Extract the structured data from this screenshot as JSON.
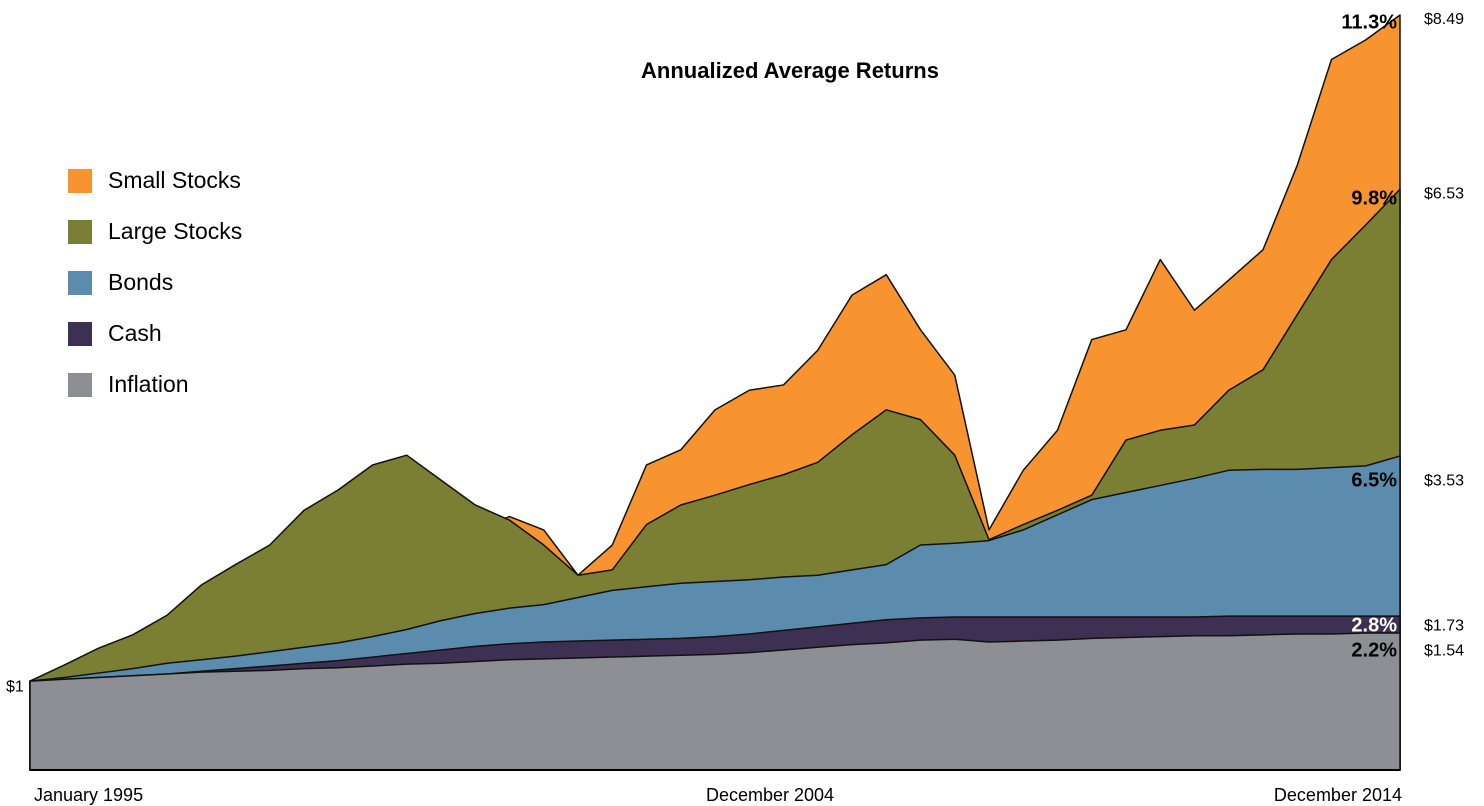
{
  "chart_data": {
    "type": "area",
    "title": "Annualized Average Returns",
    "categories": [
      "January 1995",
      null,
      null,
      null,
      null,
      null,
      null,
      null,
      null,
      null,
      null,
      null,
      null,
      null,
      null,
      null,
      null,
      null,
      null,
      null,
      "December 2004",
      null,
      null,
      null,
      null,
      null,
      null,
      null,
      null,
      null,
      null,
      null,
      null,
      null,
      null,
      null,
      null,
      null,
      null,
      null,
      "December 2014"
    ],
    "ylim": [
      0,
      8.49
    ],
    "start_value": 1,
    "start_label": "$1",
    "series": [
      {
        "name": "Small Stocks",
        "color": "#f7942f",
        "label_color": "#000000",
        "return_label": "11.3%",
        "end_value": 8.49,
        "end_label": "$8.49",
        "values": [
          1.0,
          1.12,
          1.3,
          1.45,
          1.6,
          1.8,
          2.0,
          2.1,
          2.2,
          2.3,
          2.4,
          2.5,
          2.6,
          2.7,
          2.85,
          2.7,
          2.19,
          2.53,
          3.43,
          3.6,
          4.05,
          4.27,
          4.33,
          4.72,
          5.34,
          5.57,
          4.95,
          4.44,
          2.7,
          3.37,
          3.82,
          4.84,
          4.95,
          5.74,
          5.17,
          5.51,
          5.85,
          6.8,
          7.99,
          8.21,
          8.49
        ]
      },
      {
        "name": "Large Stocks",
        "color": "#7a7f33",
        "label_color": "#000000",
        "return_label": "9.8%",
        "end_value": 6.53,
        "end_label": "$6.53",
        "values": [
          1.0,
          1.18,
          1.37,
          1.52,
          1.74,
          2.08,
          2.31,
          2.53,
          2.92,
          3.15,
          3.43,
          3.54,
          3.26,
          2.98,
          2.81,
          2.53,
          2.19,
          2.25,
          2.76,
          2.98,
          3.09,
          3.21,
          3.32,
          3.46,
          3.77,
          4.05,
          3.94,
          3.54,
          2.59,
          2.76,
          2.92,
          3.09,
          3.71,
          3.82,
          3.88,
          4.27,
          4.5,
          5.12,
          5.74,
          6.13,
          6.53
        ]
      },
      {
        "name": "Bonds",
        "color": "#5b8bad",
        "label_color": "#000000",
        "return_label": "6.5%",
        "end_value": 3.53,
        "end_label": "$3.53",
        "values": [
          1.0,
          1.04,
          1.09,
          1.14,
          1.2,
          1.24,
          1.28,
          1.33,
          1.38,
          1.43,
          1.5,
          1.58,
          1.68,
          1.76,
          1.82,
          1.86,
          1.94,
          2.02,
          2.06,
          2.1,
          2.12,
          2.14,
          2.17,
          2.19,
          2.25,
          2.31,
          2.53,
          2.55,
          2.58,
          2.7,
          2.87,
          3.04,
          3.12,
          3.2,
          3.28,
          3.37,
          3.38,
          3.38,
          3.4,
          3.42,
          3.53
        ]
      },
      {
        "name": "Cash",
        "color": "#3d3052",
        "label_color": "#ffffff",
        "return_label": "2.8%",
        "end_value": 1.73,
        "end_label": "$1.73",
        "values": [
          1.0,
          1.02,
          1.04,
          1.06,
          1.08,
          1.11,
          1.14,
          1.17,
          1.2,
          1.23,
          1.27,
          1.31,
          1.35,
          1.39,
          1.42,
          1.44,
          1.45,
          1.46,
          1.47,
          1.48,
          1.5,
          1.53,
          1.57,
          1.61,
          1.65,
          1.69,
          1.71,
          1.72,
          1.72,
          1.72,
          1.72,
          1.72,
          1.72,
          1.72,
          1.72,
          1.73,
          1.73,
          1.73,
          1.73,
          1.73,
          1.73
        ]
      },
      {
        "name": "Inflation",
        "color": "#8e8f94",
        "label_color": "#000000",
        "return_label": "2.2%",
        "end_value": 1.54,
        "end_label": "$1.54",
        "values": [
          1.0,
          1.02,
          1.04,
          1.06,
          1.08,
          1.1,
          1.11,
          1.12,
          1.14,
          1.15,
          1.17,
          1.19,
          1.2,
          1.22,
          1.24,
          1.25,
          1.26,
          1.27,
          1.28,
          1.29,
          1.3,
          1.32,
          1.35,
          1.38,
          1.41,
          1.43,
          1.46,
          1.47,
          1.44,
          1.45,
          1.46,
          1.48,
          1.49,
          1.5,
          1.51,
          1.51,
          1.52,
          1.53,
          1.53,
          1.54,
          1.54
        ]
      }
    ],
    "legend": "top-left"
  }
}
